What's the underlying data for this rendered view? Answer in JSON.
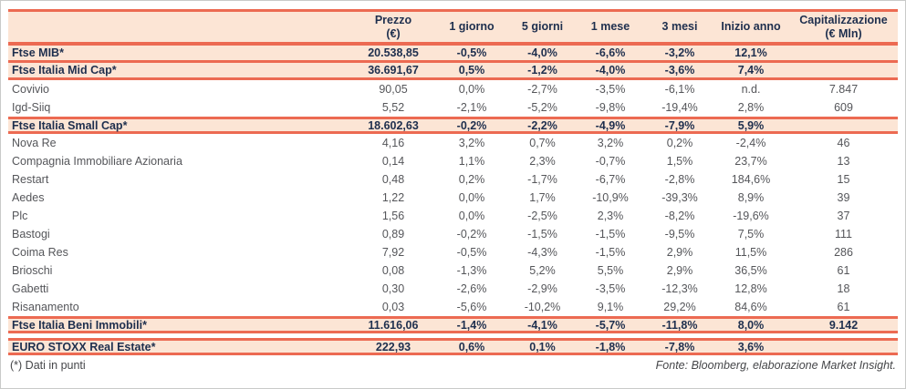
{
  "colors": {
    "accent": "#ec6a52",
    "row_highlight_bg": "#fce5d5",
    "index_text": "#1e2f4e",
    "company_text": "#55565a"
  },
  "table": {
    "columns": [
      {
        "label": ""
      },
      {
        "label": "Prezzo",
        "sublabel": "(€)"
      },
      {
        "label": "1 giorno"
      },
      {
        "label": "5 giorni"
      },
      {
        "label": "1 mese"
      },
      {
        "label": "3 mesi"
      },
      {
        "label": "Inizio anno"
      },
      {
        "label": "Capitalizzazione",
        "sublabel": "(€ Mln)"
      }
    ],
    "rows": [
      {
        "name": "Ftse MIB*",
        "type": "index",
        "values": [
          "20.538,85",
          "-0,5%",
          "-4,0%",
          "-6,6%",
          "-3,2%",
          "12,1%",
          ""
        ]
      },
      {
        "name": "Ftse Italia Mid Cap*",
        "type": "index",
        "values": [
          "36.691,67",
          "0,5%",
          "-1,2%",
          "-4,0%",
          "-3,6%",
          "7,4%",
          ""
        ]
      },
      {
        "name": "Covivio",
        "type": "company",
        "values": [
          "90,05",
          "0,0%",
          "-2,7%",
          "-3,5%",
          "-6,1%",
          "n.d.",
          "7.847"
        ]
      },
      {
        "name": "Igd-Siiq",
        "type": "company",
        "values": [
          "5,52",
          "-2,1%",
          "-5,2%",
          "-9,8%",
          "-19,4%",
          "2,8%",
          "609"
        ]
      },
      {
        "name": "Ftse Italia Small Cap*",
        "type": "index",
        "values": [
          "18.602,63",
          "-0,2%",
          "-2,2%",
          "-4,9%",
          "-7,9%",
          "5,9%",
          ""
        ]
      },
      {
        "name": "Nova Re",
        "type": "company",
        "values": [
          "4,16",
          "3,2%",
          "0,7%",
          "3,2%",
          "0,2%",
          "-2,4%",
          "46"
        ]
      },
      {
        "name": "Compagnia Immobiliare Azionaria",
        "type": "company",
        "values": [
          "0,14",
          "1,1%",
          "2,3%",
          "-0,7%",
          "1,5%",
          "23,7%",
          "13"
        ]
      },
      {
        "name": "Restart",
        "type": "company",
        "values": [
          "0,48",
          "0,2%",
          "-1,7%",
          "-6,7%",
          "-2,8%",
          "184,6%",
          "15"
        ]
      },
      {
        "name": "Aedes",
        "type": "company",
        "values": [
          "1,22",
          "0,0%",
          "1,7%",
          "-10,9%",
          "-39,3%",
          "8,9%",
          "39"
        ]
      },
      {
        "name": "Plc",
        "type": "company",
        "values": [
          "1,56",
          "0,0%",
          "-2,5%",
          "2,3%",
          "-8,2%",
          "-19,6%",
          "37"
        ]
      },
      {
        "name": "Bastogi",
        "type": "company",
        "values": [
          "0,89",
          "-0,2%",
          "-1,5%",
          "-1,5%",
          "-9,5%",
          "7,5%",
          "111"
        ]
      },
      {
        "name": "Coima Res",
        "type": "company",
        "values": [
          "7,92",
          "-0,5%",
          "-4,3%",
          "-1,5%",
          "2,9%",
          "11,5%",
          "286"
        ]
      },
      {
        "name": "Brioschi",
        "type": "company",
        "values": [
          "0,08",
          "-1,3%",
          "5,2%",
          "5,5%",
          "2,9%",
          "36,5%",
          "61"
        ]
      },
      {
        "name": "Gabetti",
        "type": "company",
        "values": [
          "0,30",
          "-2,6%",
          "-2,9%",
          "-3,5%",
          "-12,3%",
          "12,8%",
          "18"
        ]
      },
      {
        "name": "Risanamento",
        "type": "company",
        "values": [
          "0,03",
          "-5,6%",
          "-10,2%",
          "9,1%",
          "29,2%",
          "84,6%",
          "61"
        ]
      },
      {
        "name": "Ftse Italia Beni Immobili*",
        "type": "index",
        "values": [
          "11.616,06",
          "-1,4%",
          "-4,1%",
          "-5,7%",
          "-11,8%",
          "8,0%",
          "9.142"
        ]
      },
      {
        "name": "EURO STOXX Real Estate*",
        "type": "index",
        "gap_before": true,
        "values": [
          "222,93",
          "0,6%",
          "0,1%",
          "-1,8%",
          "-7,8%",
          "3,6%",
          ""
        ]
      }
    ]
  },
  "footer": {
    "note": "(*) Dati in punti",
    "source": "Fonte: Bloomberg, elaborazione Market Insight."
  }
}
